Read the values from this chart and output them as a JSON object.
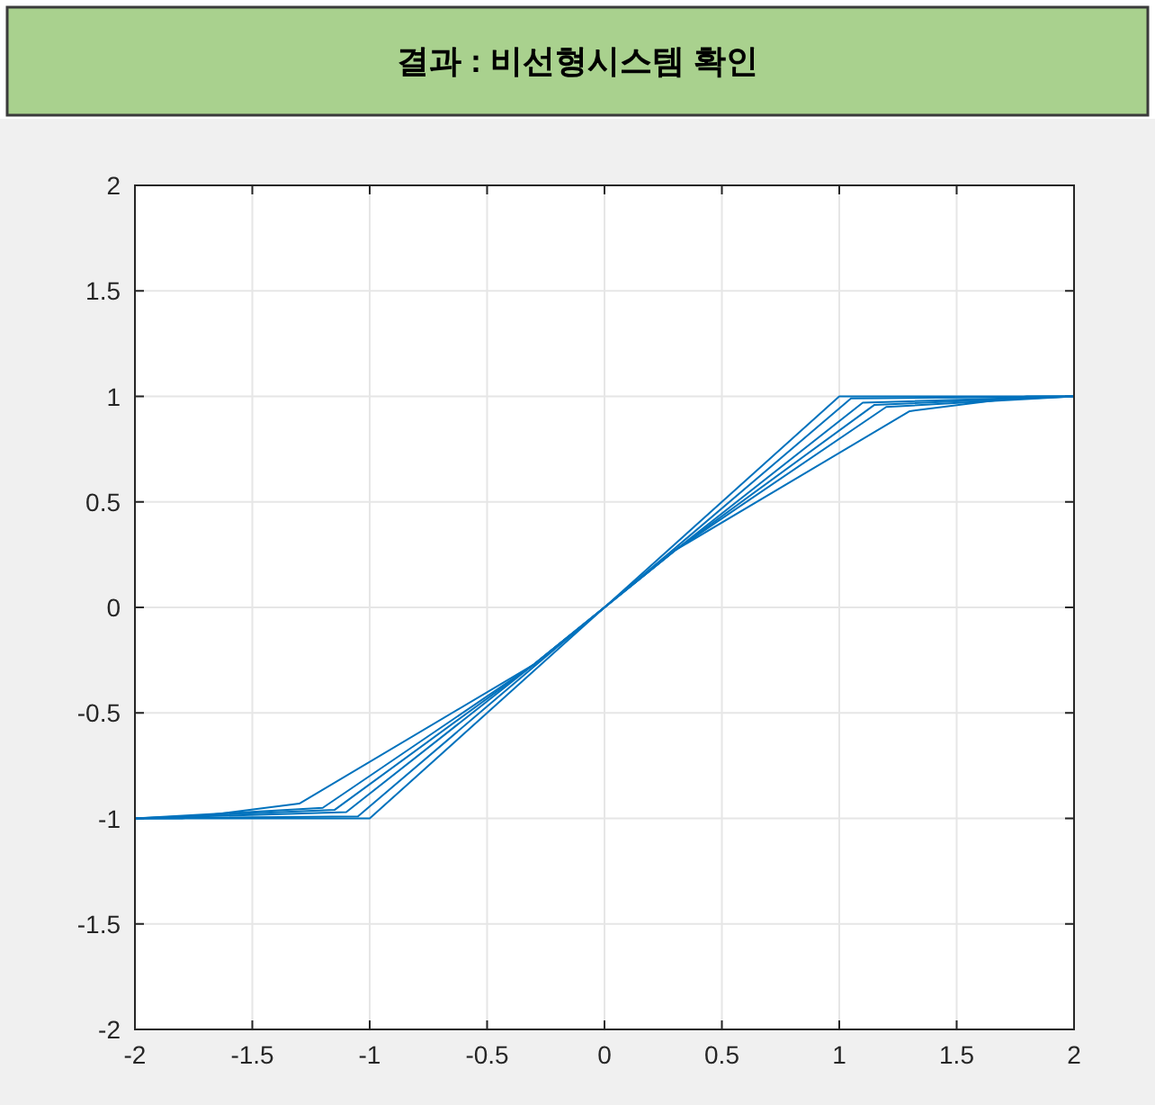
{
  "chart_data": {
    "type": "line",
    "title": "결과 : 비선형시스템 확인",
    "series": [
      {
        "color": "#0072bd",
        "x": [
          -2,
          -1,
          1,
          2
        ],
        "values": [
          -1,
          -1,
          1,
          1
        ]
      },
      {
        "color": "#0072bd",
        "x": [
          -2,
          -1.05,
          -0.3,
          0.3,
          1.05,
          2
        ],
        "values": [
          -1,
          -0.99,
          -0.28,
          0.28,
          0.99,
          1
        ]
      },
      {
        "color": "#0072bd",
        "x": [
          -2,
          -1.1,
          -0.3,
          0.3,
          1.1,
          2
        ],
        "values": [
          -1,
          -0.97,
          -0.27,
          0.27,
          0.97,
          1
        ]
      },
      {
        "color": "#0072bd",
        "x": [
          -2,
          -1.15,
          -0.3,
          0.3,
          1.15,
          2
        ],
        "values": [
          -1,
          -0.96,
          -0.27,
          0.27,
          0.96,
          1
        ]
      },
      {
        "color": "#0072bd",
        "x": [
          -2,
          -1.2,
          -0.3,
          0.3,
          1.2,
          2
        ],
        "values": [
          -1,
          -0.95,
          -0.27,
          0.27,
          0.95,
          1
        ]
      },
      {
        "color": "#0072bd",
        "x": [
          -2,
          -1.8,
          -1.3,
          -0.3,
          0.3,
          1.3,
          1.8,
          2
        ],
        "values": [
          -1,
          -1,
          -0.93,
          -0.27,
          0.27,
          0.93,
          1,
          1
        ]
      }
    ],
    "xlim": [
      -2,
      2
    ],
    "ylim": [
      -2,
      2
    ],
    "xticks": [
      -2,
      -1.5,
      -1,
      -0.5,
      0,
      0.5,
      1,
      1.5,
      2
    ],
    "yticks": [
      -2,
      -1.5,
      -1,
      -0.5,
      0,
      0.5,
      1,
      1.5,
      2
    ],
    "grid": true
  }
}
